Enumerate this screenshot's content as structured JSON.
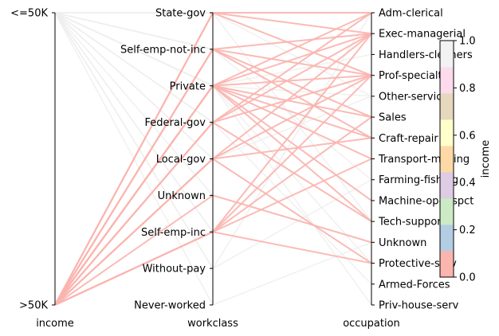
{
  "chart_data": {
    "type": "parallel_categories",
    "axes": [
      {
        "name": "income",
        "categories": [
          "<=50K",
          ">50K"
        ]
      },
      {
        "name": "workclass",
        "categories": [
          "State-gov",
          "Self-emp-not-inc",
          "Private",
          "Federal-gov",
          "Local-gov",
          "Unknown",
          "Self-emp-inc",
          "Without-pay",
          "Never-worked"
        ]
      },
      {
        "name": "occupation",
        "categories": [
          "Adm-clerical",
          "Exec-managerial",
          "Handlers-cleaners",
          "Prof-specialty",
          "Other-service",
          "Sales",
          "Craft-repair",
          "Transport-moving",
          "Farming-fishing",
          "Machine-op-inspct",
          "Tech-support",
          "Unknown",
          "Protective-serv",
          "Armed-Forces",
          "Priv-house-serv"
        ]
      }
    ],
    "axis_labels": {
      "income": "income",
      "workclass": "workclass",
      "occupation": "occupation"
    },
    "line_colors": {
      "<=50K": "#eeeeee",
      ">50K": "#fbb4ae"
    },
    "colorbar": {
      "label": "income",
      "ticks": [
        "0.0",
        "0.2",
        "0.4",
        "0.6",
        "0.8",
        "1.0"
      ],
      "range": [
        0,
        1
      ],
      "colormap": "Pastel1",
      "colors": [
        "#fbb4ae",
        "#b3cde3",
        "#ccebc5",
        "#decbe4",
        "#fed9a6",
        "#ffffcc",
        "#e5d8bd",
        "#fddaec",
        "#f2f2f2"
      ]
    },
    "paths": [
      {
        "income": "<=50K",
        "workclass": "State-gov",
        "occupation": "Adm-clerical"
      },
      {
        "income": "<=50K",
        "workclass": "State-gov",
        "occupation": "Prof-specialty"
      },
      {
        "income": "<=50K",
        "workclass": "State-gov",
        "occupation": "Other-service"
      },
      {
        "income": "<=50K",
        "workclass": "State-gov",
        "occupation": "Tech-support"
      },
      {
        "income": "<=50K",
        "workclass": "Self-emp-not-inc",
        "occupation": "Exec-managerial"
      },
      {
        "income": "<=50K",
        "workclass": "Self-emp-not-inc",
        "occupation": "Craft-repair"
      },
      {
        "income": "<=50K",
        "workclass": "Self-emp-not-inc",
        "occupation": "Farming-fishing"
      },
      {
        "income": "<=50K",
        "workclass": "Self-emp-not-inc",
        "occupation": "Sales"
      },
      {
        "income": "<=50K",
        "workclass": "Private",
        "occupation": "Adm-clerical"
      },
      {
        "income": "<=50K",
        "workclass": "Private",
        "occupation": "Handlers-cleaners"
      },
      {
        "income": "<=50K",
        "workclass": "Private",
        "occupation": "Other-service"
      },
      {
        "income": "<=50K",
        "workclass": "Private",
        "occupation": "Sales"
      },
      {
        "income": "<=50K",
        "workclass": "Private",
        "occupation": "Craft-repair"
      },
      {
        "income": "<=50K",
        "workclass": "Private",
        "occupation": "Transport-moving"
      },
      {
        "income": "<=50K",
        "workclass": "Private",
        "occupation": "Machine-op-inspct"
      },
      {
        "income": "<=50K",
        "workclass": "Private",
        "occupation": "Priv-house-serv"
      },
      {
        "income": "<=50K",
        "workclass": "Private",
        "occupation": "Protective-serv"
      },
      {
        "income": "<=50K",
        "workclass": "Federal-gov",
        "occupation": "Adm-clerical"
      },
      {
        "income": "<=50K",
        "workclass": "Federal-gov",
        "occupation": "Armed-Forces"
      },
      {
        "income": "<=50K",
        "workclass": "Federal-gov",
        "occupation": "Tech-support"
      },
      {
        "income": "<=50K",
        "workclass": "Local-gov",
        "occupation": "Protective-serv"
      },
      {
        "income": "<=50K",
        "workclass": "Local-gov",
        "occupation": "Other-service"
      },
      {
        "income": "<=50K",
        "workclass": "Local-gov",
        "occupation": "Prof-specialty"
      },
      {
        "income": "<=50K",
        "workclass": "Unknown",
        "occupation": "Unknown"
      },
      {
        "income": "<=50K",
        "workclass": "Self-emp-inc",
        "occupation": "Sales"
      },
      {
        "income": "<=50K",
        "workclass": "Self-emp-inc",
        "occupation": "Exec-managerial"
      },
      {
        "income": "<=50K",
        "workclass": "Without-pay",
        "occupation": "Farming-fishing"
      },
      {
        "income": "<=50K",
        "workclass": "Without-pay",
        "occupation": "Adm-clerical"
      },
      {
        "income": "<=50K",
        "workclass": "Never-worked",
        "occupation": "Unknown"
      },
      {
        "income": ">50K",
        "workclass": "State-gov",
        "occupation": "Exec-managerial"
      },
      {
        "income": ">50K",
        "workclass": "State-gov",
        "occupation": "Prof-specialty"
      },
      {
        "income": ">50K",
        "workclass": "State-gov",
        "occupation": "Adm-clerical"
      },
      {
        "income": ">50K",
        "workclass": "Self-emp-not-inc",
        "occupation": "Exec-managerial"
      },
      {
        "income": ">50K",
        "workclass": "Self-emp-not-inc",
        "occupation": "Prof-specialty"
      },
      {
        "income": ">50K",
        "workclass": "Self-emp-not-inc",
        "occupation": "Sales"
      },
      {
        "income": ">50K",
        "workclass": "Self-emp-not-inc",
        "occupation": "Craft-repair"
      },
      {
        "income": ">50K",
        "workclass": "Private",
        "occupation": "Exec-managerial"
      },
      {
        "income": ">50K",
        "workclass": "Private",
        "occupation": "Prof-specialty"
      },
      {
        "income": ">50K",
        "workclass": "Private",
        "occupation": "Sales"
      },
      {
        "income": ">50K",
        "workclass": "Private",
        "occupation": "Craft-repair"
      },
      {
        "income": ">50K",
        "workclass": "Private",
        "occupation": "Tech-support"
      },
      {
        "income": ">50K",
        "workclass": "Private",
        "occupation": "Machine-op-inspct"
      },
      {
        "income": ">50K",
        "workclass": "Private",
        "occupation": "Transport-moving"
      },
      {
        "income": ">50K",
        "workclass": "Private",
        "occupation": "Adm-clerical"
      },
      {
        "income": ">50K",
        "workclass": "Federal-gov",
        "occupation": "Exec-managerial"
      },
      {
        "income": ">50K",
        "workclass": "Federal-gov",
        "occupation": "Prof-specialty"
      },
      {
        "income": ">50K",
        "workclass": "Federal-gov",
        "occupation": "Adm-clerical"
      },
      {
        "income": ">50K",
        "workclass": "Federal-gov",
        "occupation": "Tech-support"
      },
      {
        "income": ">50K",
        "workclass": "Local-gov",
        "occupation": "Prof-specialty"
      },
      {
        "income": ">50K",
        "workclass": "Local-gov",
        "occupation": "Protective-serv"
      },
      {
        "income": ">50K",
        "workclass": "Local-gov",
        "occupation": "Exec-managerial"
      },
      {
        "income": ">50K",
        "workclass": "Local-gov",
        "occupation": "Craft-repair"
      },
      {
        "income": ">50K",
        "workclass": "Unknown",
        "occupation": "Unknown"
      },
      {
        "income": ">50K",
        "workclass": "Self-emp-inc",
        "occupation": "Exec-managerial"
      },
      {
        "income": ">50K",
        "workclass": "Self-emp-inc",
        "occupation": "Sales"
      },
      {
        "income": ">50K",
        "workclass": "Self-emp-inc",
        "occupation": "Prof-specialty"
      },
      {
        "income": ">50K",
        "workclass": "Self-emp-inc",
        "occupation": "Protective-serv"
      },
      {
        "income": ">50K",
        "workclass": "Self-emp-inc",
        "occupation": "Transport-moving"
      }
    ]
  }
}
